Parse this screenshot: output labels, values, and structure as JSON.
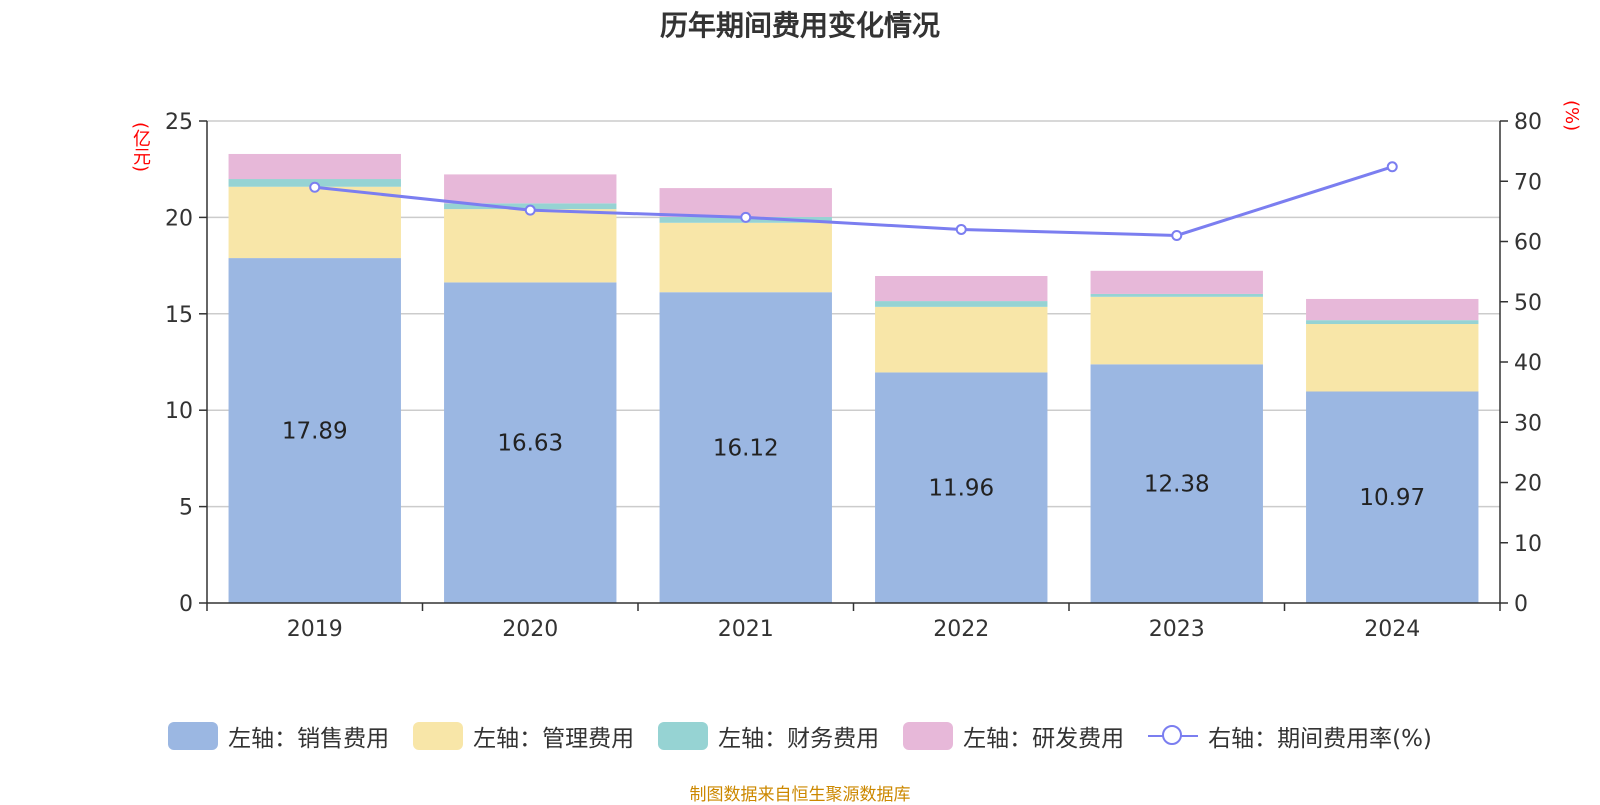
{
  "chart_data": {
    "type": "bar",
    "title": "历年期间费用变化情况",
    "categories": [
      "2019",
      "2020",
      "2021",
      "2022",
      "2023",
      "2024"
    ],
    "left_axis": {
      "unit": "(亿元)",
      "ylim": [
        0,
        25
      ],
      "ticks": [
        0,
        5,
        10,
        15,
        20,
        25
      ]
    },
    "right_axis": {
      "unit": "(%)",
      "ylim": [
        0,
        80
      ],
      "ticks": [
        0,
        10,
        20,
        30,
        40,
        50,
        60,
        70,
        80
      ]
    },
    "series": [
      {
        "name": "左轴：销售费用",
        "type": "bar",
        "stack": "total",
        "axis": "left",
        "color": "#9bb7e2",
        "values": [
          17.89,
          16.63,
          16.12,
          11.96,
          12.38,
          10.97
        ],
        "show_labels": true
      },
      {
        "name": "左轴：管理费用",
        "type": "bar",
        "stack": "total",
        "axis": "left",
        "color": "#f8e6a8",
        "values": [
          3.7,
          3.8,
          3.6,
          3.4,
          3.5,
          3.5
        ],
        "show_labels": false
      },
      {
        "name": "左轴：财务费用",
        "type": "bar",
        "stack": "total",
        "axis": "left",
        "color": "#96d3d3",
        "values": [
          0.4,
          0.3,
          0.3,
          0.3,
          0.15,
          0.2
        ],
        "show_labels": false
      },
      {
        "name": "左轴：研发费用",
        "type": "bar",
        "stack": "total",
        "axis": "left",
        "color": "#e7b8d9",
        "values": [
          1.3,
          1.5,
          1.5,
          1.3,
          1.2,
          1.1
        ],
        "show_labels": false
      },
      {
        "name": "右轴：期间费用率(%)",
        "type": "line",
        "axis": "right",
        "color": "#7b7ef0",
        "values": [
          69,
          65.2,
          64,
          62,
          61,
          72.4
        ],
        "show_labels": false
      }
    ],
    "grid": true,
    "legend_position": "bottom"
  },
  "source_text": "制图数据来自恒生聚源数据库"
}
